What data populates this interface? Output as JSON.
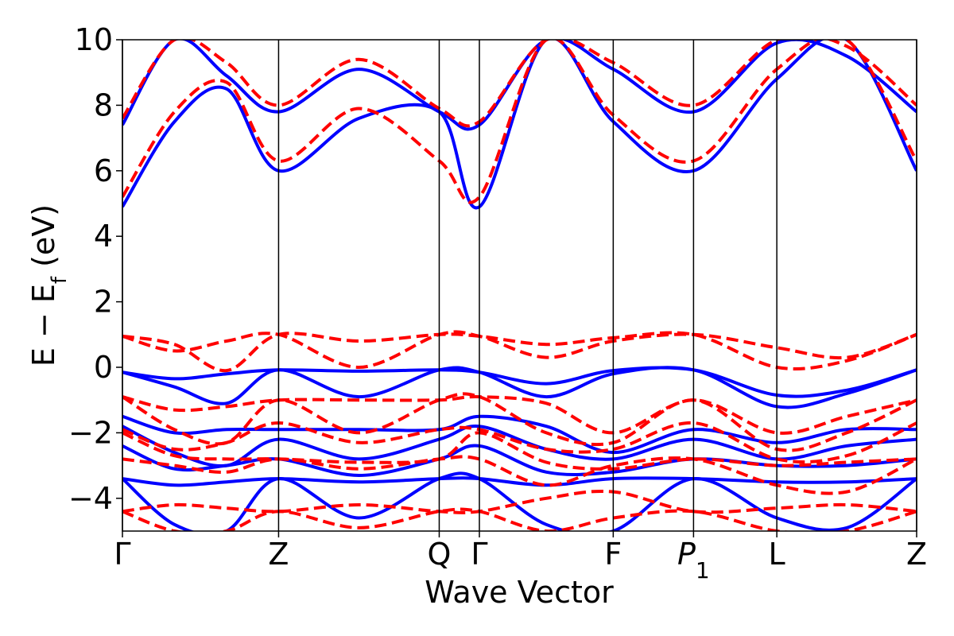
{
  "chart_data": {
    "type": "line",
    "title": "",
    "xlabel": "Wave Vector",
    "ylabel_main": "E − E",
    "ylabel_sub": "f",
    "ylabel_unit": " (eV)",
    "ylim": [
      -5,
      10
    ],
    "yticks": [
      -4,
      -2,
      0,
      2,
      4,
      6,
      8,
      10
    ],
    "ytick_labels": [
      "−4",
      "−2",
      "0",
      "2",
      "4",
      "6",
      "8",
      "10"
    ],
    "xlim": [
      0,
      5.34
    ],
    "kpoints": [
      {
        "label": "Γ",
        "sub": "",
        "x": 0.0
      },
      {
        "label": "Z",
        "sub": "",
        "x": 1.05
      },
      {
        "label": "Q",
        "sub": "",
        "x": 2.13
      },
      {
        "label": "Γ",
        "sub": "",
        "x": 2.4
      },
      {
        "label": "F",
        "sub": "",
        "x": 3.3
      },
      {
        "label": "P",
        "sub": "1",
        "x": 3.84
      },
      {
        "label": "L",
        "sub": "",
        "x": 4.4
      },
      {
        "label": "Z",
        "sub": "",
        "x": 5.34
      }
    ],
    "grid": false,
    "legend": "none",
    "series_styles": [
      {
        "color": "#0000ff",
        "dash": "solid"
      },
      {
        "color": "#ff0000",
        "dash": "dashed"
      }
    ],
    "x": [
      0.0,
      0.35,
      0.7,
      1.05,
      1.59,
      2.13,
      2.4,
      2.85,
      3.3,
      3.84,
      4.4,
      4.87,
      5.34
    ],
    "series": [
      {
        "style": 0,
        "values": [
          4.9,
          7.5,
          8.5,
          6.0,
          7.6,
          7.8,
          4.9,
          10.0,
          7.5,
          6.0,
          8.8,
          10.0,
          6.0
        ]
      },
      {
        "style": 0,
        "values": [
          7.4,
          10.0,
          8.9,
          7.8,
          9.1,
          7.8,
          7.4,
          10.0,
          9.1,
          7.8,
          9.9,
          9.5,
          7.8
        ]
      },
      {
        "style": 1,
        "values": [
          5.2,
          7.8,
          8.7,
          6.3,
          7.9,
          6.3,
          5.2,
          10.0,
          7.7,
          6.3,
          9.1,
          10.0,
          6.3
        ]
      },
      {
        "style": 1,
        "values": [
          7.6,
          10.0,
          9.3,
          8.0,
          9.4,
          7.9,
          7.5,
          10.0,
          9.3,
          8.0,
          10.0,
          9.8,
          8.0
        ]
      },
      {
        "style": 0,
        "values": [
          -0.15,
          -0.35,
          -0.2,
          -0.08,
          -0.12,
          -0.08,
          -0.15,
          -0.5,
          -0.1,
          -0.08,
          -0.85,
          -0.7,
          -0.08
        ]
      },
      {
        "style": 0,
        "values": [
          -0.15,
          -0.6,
          -1.1,
          -0.08,
          -0.9,
          -0.08,
          -0.15,
          -0.9,
          -0.2,
          -0.08,
          -1.2,
          -0.8,
          -0.08
        ]
      },
      {
        "style": 0,
        "values": [
          -1.5,
          -2.0,
          -1.9,
          -1.9,
          -1.9,
          -1.9,
          -1.5,
          -1.8,
          -2.6,
          -1.9,
          -2.3,
          -1.9,
          -1.9
        ]
      },
      {
        "style": 0,
        "values": [
          -1.8,
          -2.6,
          -3.0,
          -2.2,
          -2.8,
          -2.2,
          -1.8,
          -2.5,
          -2.8,
          -2.2,
          -2.8,
          -2.4,
          -2.2
        ]
      },
      {
        "style": 0,
        "values": [
          -2.4,
          -3.1,
          -3.0,
          -2.8,
          -3.3,
          -2.8,
          -2.4,
          -3.2,
          -3.2,
          -2.8,
          -3.0,
          -3.0,
          -2.8
        ]
      },
      {
        "style": 0,
        "values": [
          -3.4,
          -3.6,
          -3.5,
          -3.4,
          -3.5,
          -3.4,
          -3.4,
          -3.6,
          -3.4,
          -3.4,
          -3.5,
          -3.5,
          -3.4
        ]
      },
      {
        "style": 0,
        "values": [
          -3.4,
          -4.8,
          -5.0,
          -3.4,
          -4.6,
          -3.4,
          -3.4,
          -4.8,
          -5.0,
          -3.4,
          -4.6,
          -4.9,
          -3.4
        ]
      },
      {
        "style": 1,
        "values": [
          0.95,
          0.5,
          0.8,
          1.0,
          0.0,
          1.0,
          0.95,
          0.3,
          0.8,
          1.0,
          0.6,
          0.3,
          1.0
        ]
      },
      {
        "style": 1,
        "values": [
          0.95,
          0.7,
          -0.1,
          1.0,
          0.8,
          1.0,
          0.95,
          0.7,
          0.9,
          1.0,
          0.0,
          0.2,
          1.0
        ]
      },
      {
        "style": 1,
        "values": [
          -0.9,
          -1.3,
          -1.2,
          -1.0,
          -1.0,
          -1.0,
          -0.9,
          -1.1,
          -2.0,
          -1.0,
          -2.0,
          -1.5,
          -1.0
        ]
      },
      {
        "style": 1,
        "values": [
          -0.9,
          -1.9,
          -2.3,
          -1.0,
          -2.0,
          -1.0,
          -0.9,
          -2.0,
          -2.3,
          -1.0,
          -2.5,
          -2.0,
          -1.0
        ]
      },
      {
        "style": 1,
        "values": [
          -1.9,
          -2.5,
          -2.3,
          -1.7,
          -2.3,
          -1.9,
          -1.9,
          -2.5,
          -2.5,
          -1.7,
          -2.8,
          -2.7,
          -1.7
        ]
      },
      {
        "style": 1,
        "values": [
          -2.0,
          -2.7,
          -2.8,
          -2.8,
          -2.9,
          -2.8,
          -2.0,
          -2.9,
          -3.1,
          -2.8,
          -3.0,
          -2.9,
          -2.8
        ]
      },
      {
        "style": 1,
        "values": [
          -2.8,
          -3.0,
          -3.2,
          -2.8,
          -3.1,
          -2.8,
          -2.8,
          -3.6,
          -3.0,
          -2.8,
          -3.6,
          -3.8,
          -2.8
        ]
      },
      {
        "style": 1,
        "values": [
          -4.4,
          -4.2,
          -4.3,
          -4.4,
          -4.2,
          -4.4,
          -4.4,
          -4.0,
          -3.8,
          -4.4,
          -4.3,
          -4.2,
          -4.4
        ]
      },
      {
        "style": 1,
        "values": [
          -4.4,
          -5.0,
          -5.0,
          -4.4,
          -4.9,
          -4.4,
          -4.4,
          -5.0,
          -4.6,
          -4.4,
          -5.0,
          -5.0,
          -4.4
        ]
      }
    ]
  }
}
